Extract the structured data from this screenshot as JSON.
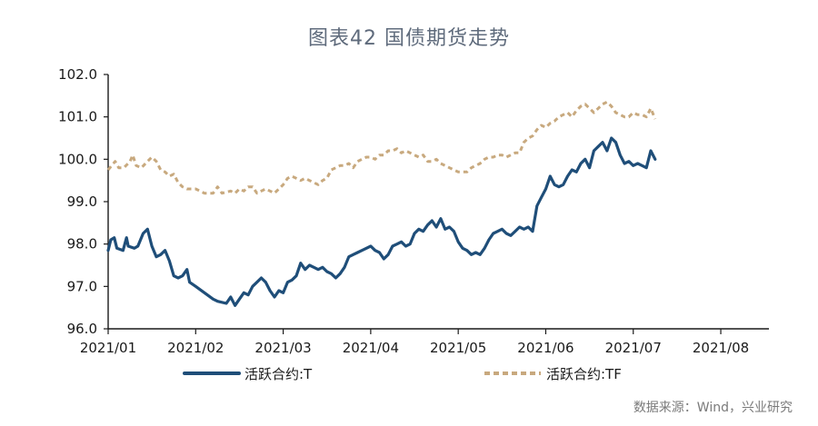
{
  "chart_data": {
    "type": "line",
    "title": "图表42  国债期货走势",
    "source": "数据来源：Wind，兴业研究",
    "ylim": [
      96.0,
      102.0
    ],
    "y_ticks": [
      "102.0",
      "101.0",
      "100.0",
      "99.0",
      "98.0",
      "97.0",
      "96.0"
    ],
    "x_ticks": [
      "2021/01",
      "2021/02",
      "2021/03",
      "2021/04",
      "2021/05",
      "2021/06",
      "2021/07",
      "2021/08"
    ],
    "legend_position": "bottom",
    "x_tick_positions": [
      0,
      1,
      2,
      3,
      4,
      5,
      6,
      7
    ],
    "x_end": 7.55,
    "series": [
      {
        "name": "活跃合约:T",
        "color": "#1f4e79",
        "style": "solid",
        "points": [
          [
            0.0,
            97.85
          ],
          [
            0.03,
            98.1
          ],
          [
            0.07,
            98.15
          ],
          [
            0.1,
            97.9
          ],
          [
            0.17,
            97.85
          ],
          [
            0.21,
            98.15
          ],
          [
            0.23,
            97.95
          ],
          [
            0.3,
            97.9
          ],
          [
            0.34,
            97.95
          ],
          [
            0.4,
            98.25
          ],
          [
            0.45,
            98.35
          ],
          [
            0.5,
            97.95
          ],
          [
            0.55,
            97.7
          ],
          [
            0.6,
            97.75
          ],
          [
            0.65,
            97.85
          ],
          [
            0.7,
            97.6
          ],
          [
            0.75,
            97.25
          ],
          [
            0.8,
            97.2
          ],
          [
            0.85,
            97.25
          ],
          [
            0.9,
            97.4
          ],
          [
            0.93,
            97.1
          ],
          [
            1.0,
            97.0
          ],
          [
            1.1,
            96.85
          ],
          [
            1.2,
            96.7
          ],
          [
            1.25,
            96.65
          ],
          [
            1.35,
            96.6
          ],
          [
            1.4,
            96.75
          ],
          [
            1.45,
            96.55
          ],
          [
            1.5,
            96.7
          ],
          [
            1.55,
            96.85
          ],
          [
            1.6,
            96.8
          ],
          [
            1.65,
            97.0
          ],
          [
            1.7,
            97.1
          ],
          [
            1.75,
            97.2
          ],
          [
            1.8,
            97.1
          ],
          [
            1.85,
            96.9
          ],
          [
            1.9,
            96.75
          ],
          [
            1.95,
            96.9
          ],
          [
            2.0,
            96.85
          ],
          [
            2.05,
            97.1
          ],
          [
            2.1,
            97.15
          ],
          [
            2.15,
            97.25
          ],
          [
            2.2,
            97.55
          ],
          [
            2.25,
            97.4
          ],
          [
            2.3,
            97.5
          ],
          [
            2.35,
            97.45
          ],
          [
            2.4,
            97.4
          ],
          [
            2.45,
            97.45
          ],
          [
            2.5,
            97.35
          ],
          [
            2.55,
            97.3
          ],
          [
            2.6,
            97.2
          ],
          [
            2.65,
            97.3
          ],
          [
            2.7,
            97.45
          ],
          [
            2.75,
            97.7
          ],
          [
            2.8,
            97.75
          ],
          [
            2.85,
            97.8
          ],
          [
            2.9,
            97.85
          ],
          [
            2.95,
            97.9
          ],
          [
            3.0,
            97.95
          ],
          [
            3.05,
            97.85
          ],
          [
            3.1,
            97.8
          ],
          [
            3.15,
            97.65
          ],
          [
            3.2,
            97.75
          ],
          [
            3.25,
            97.95
          ],
          [
            3.3,
            98.0
          ],
          [
            3.35,
            98.05
          ],
          [
            3.4,
            97.95
          ],
          [
            3.45,
            98.0
          ],
          [
            3.5,
            98.25
          ],
          [
            3.55,
            98.35
          ],
          [
            3.6,
            98.3
          ],
          [
            3.65,
            98.45
          ],
          [
            3.7,
            98.55
          ],
          [
            3.75,
            98.4
          ],
          [
            3.8,
            98.6
          ],
          [
            3.85,
            98.35
          ],
          [
            3.9,
            98.4
          ],
          [
            3.95,
            98.3
          ],
          [
            4.0,
            98.05
          ],
          [
            4.05,
            97.9
          ],
          [
            4.1,
            97.85
          ],
          [
            4.15,
            97.75
          ],
          [
            4.2,
            97.8
          ],
          [
            4.25,
            97.75
          ],
          [
            4.3,
            97.9
          ],
          [
            4.35,
            98.1
          ],
          [
            4.4,
            98.25
          ],
          [
            4.45,
            98.3
          ],
          [
            4.5,
            98.35
          ],
          [
            4.55,
            98.25
          ],
          [
            4.6,
            98.2
          ],
          [
            4.65,
            98.3
          ],
          [
            4.7,
            98.4
          ],
          [
            4.75,
            98.35
          ],
          [
            4.8,
            98.4
          ],
          [
            4.85,
            98.3
          ],
          [
            4.9,
            98.9
          ],
          [
            4.95,
            99.1
          ],
          [
            5.0,
            99.3
          ],
          [
            5.05,
            99.6
          ],
          [
            5.1,
            99.4
          ],
          [
            5.15,
            99.35
          ],
          [
            5.2,
            99.4
          ],
          [
            5.25,
            99.6
          ],
          [
            5.3,
            99.75
          ],
          [
            5.35,
            99.7
          ],
          [
            5.4,
            99.9
          ],
          [
            5.45,
            100.0
          ],
          [
            5.5,
            99.8
          ],
          [
            5.55,
            100.2
          ],
          [
            5.6,
            100.3
          ],
          [
            5.65,
            100.4
          ],
          [
            5.7,
            100.2
          ],
          [
            5.75,
            100.5
          ],
          [
            5.8,
            100.4
          ],
          [
            5.85,
            100.1
          ],
          [
            5.9,
            99.9
          ],
          [
            5.95,
            99.95
          ],
          [
            6.0,
            99.85
          ],
          [
            6.05,
            99.9
          ],
          [
            6.1,
            99.85
          ],
          [
            6.15,
            99.8
          ],
          [
            6.2,
            100.2
          ],
          [
            6.25,
            100.0
          ]
        ]
      },
      {
        "name": "活跃合约:TF",
        "color": "#c8a97e",
        "style": "dashed",
        "points": [
          [
            0.0,
            99.75
          ],
          [
            0.04,
            99.85
          ],
          [
            0.08,
            99.95
          ],
          [
            0.12,
            99.8
          ],
          [
            0.18,
            99.8
          ],
          [
            0.25,
            99.95
          ],
          [
            0.28,
            100.1
          ],
          [
            0.32,
            99.85
          ],
          [
            0.38,
            99.8
          ],
          [
            0.45,
            99.95
          ],
          [
            0.5,
            100.05
          ],
          [
            0.55,
            99.95
          ],
          [
            0.6,
            99.75
          ],
          [
            0.65,
            99.7
          ],
          [
            0.7,
            99.6
          ],
          [
            0.75,
            99.65
          ],
          [
            0.8,
            99.45
          ],
          [
            0.85,
            99.35
          ],
          [
            0.9,
            99.3
          ],
          [
            1.0,
            99.3
          ],
          [
            1.1,
            99.2
          ],
          [
            1.2,
            99.2
          ],
          [
            1.25,
            99.35
          ],
          [
            1.3,
            99.2
          ],
          [
            1.4,
            99.25
          ],
          [
            1.45,
            99.2
          ],
          [
            1.5,
            99.3
          ],
          [
            1.55,
            99.25
          ],
          [
            1.6,
            99.35
          ],
          [
            1.65,
            99.35
          ],
          [
            1.7,
            99.2
          ],
          [
            1.75,
            99.25
          ],
          [
            1.8,
            99.3
          ],
          [
            1.85,
            99.25
          ],
          [
            1.9,
            99.2
          ],
          [
            1.95,
            99.3
          ],
          [
            2.0,
            99.4
          ],
          [
            2.05,
            99.55
          ],
          [
            2.1,
            99.6
          ],
          [
            2.15,
            99.55
          ],
          [
            2.2,
            99.5
          ],
          [
            2.25,
            99.55
          ],
          [
            2.3,
            99.5
          ],
          [
            2.35,
            99.45
          ],
          [
            2.4,
            99.4
          ],
          [
            2.45,
            99.5
          ],
          [
            2.5,
            99.55
          ],
          [
            2.55,
            99.75
          ],
          [
            2.6,
            99.8
          ],
          [
            2.65,
            99.85
          ],
          [
            2.7,
            99.85
          ],
          [
            2.75,
            99.9
          ],
          [
            2.8,
            99.8
          ],
          [
            2.85,
            99.95
          ],
          [
            2.9,
            100.0
          ],
          [
            2.95,
            100.05
          ],
          [
            3.0,
            100.05
          ],
          [
            3.05,
            100.0
          ],
          [
            3.1,
            100.1
          ],
          [
            3.15,
            100.1
          ],
          [
            3.2,
            100.2
          ],
          [
            3.25,
            100.2
          ],
          [
            3.3,
            100.25
          ],
          [
            3.35,
            100.15
          ],
          [
            3.4,
            100.2
          ],
          [
            3.45,
            100.15
          ],
          [
            3.5,
            100.1
          ],
          [
            3.55,
            100.05
          ],
          [
            3.6,
            100.1
          ],
          [
            3.65,
            99.95
          ],
          [
            3.7,
            99.95
          ],
          [
            3.75,
            100.0
          ],
          [
            3.8,
            99.9
          ],
          [
            3.85,
            99.85
          ],
          [
            3.9,
            99.8
          ],
          [
            3.95,
            99.75
          ],
          [
            4.0,
            99.7
          ],
          [
            4.05,
            99.7
          ],
          [
            4.1,
            99.7
          ],
          [
            4.15,
            99.8
          ],
          [
            4.2,
            99.85
          ],
          [
            4.25,
            99.9
          ],
          [
            4.3,
            100.0
          ],
          [
            4.35,
            100.05
          ],
          [
            4.4,
            100.05
          ],
          [
            4.45,
            100.1
          ],
          [
            4.5,
            100.1
          ],
          [
            4.55,
            100.05
          ],
          [
            4.6,
            100.1
          ],
          [
            4.65,
            100.15
          ],
          [
            4.7,
            100.15
          ],
          [
            4.75,
            100.4
          ],
          [
            4.8,
            100.5
          ],
          [
            4.85,
            100.55
          ],
          [
            4.9,
            100.7
          ],
          [
            4.95,
            100.8
          ],
          [
            5.0,
            100.75
          ],
          [
            5.05,
            100.85
          ],
          [
            5.1,
            100.9
          ],
          [
            5.15,
            101.0
          ],
          [
            5.2,
            101.05
          ],
          [
            5.25,
            101.1
          ],
          [
            5.3,
            101.0
          ],
          [
            5.35,
            101.15
          ],
          [
            5.4,
            101.25
          ],
          [
            5.45,
            101.3
          ],
          [
            5.5,
            101.2
          ],
          [
            5.55,
            101.1
          ],
          [
            5.6,
            101.2
          ],
          [
            5.65,
            101.3
          ],
          [
            5.7,
            101.35
          ],
          [
            5.75,
            101.25
          ],
          [
            5.8,
            101.1
          ],
          [
            5.85,
            101.05
          ],
          [
            5.9,
            101.0
          ],
          [
            5.95,
            101.0
          ],
          [
            6.0,
            101.1
          ],
          [
            6.05,
            101.05
          ],
          [
            6.1,
            101.05
          ],
          [
            6.15,
            101.0
          ],
          [
            6.2,
            101.2
          ],
          [
            6.25,
            100.95
          ]
        ]
      }
    ]
  }
}
